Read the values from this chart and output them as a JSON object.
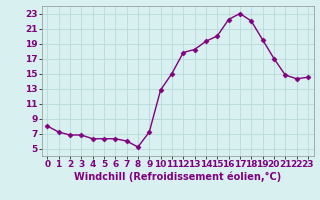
{
  "x": [
    0,
    1,
    2,
    3,
    4,
    5,
    6,
    7,
    8,
    9,
    10,
    11,
    12,
    13,
    14,
    15,
    16,
    17,
    18,
    19,
    20,
    21,
    22,
    23
  ],
  "y": [
    8.0,
    7.2,
    6.8,
    6.8,
    6.3,
    6.3,
    6.3,
    6.0,
    5.2,
    7.2,
    12.8,
    15.0,
    17.8,
    18.2,
    19.3,
    20.0,
    22.2,
    23.0,
    22.0,
    19.5,
    17.0,
    14.8,
    14.3,
    14.5
  ],
  "line_color": "#800080",
  "marker": "D",
  "marker_size": 2.5,
  "xlabel": "Windchill (Refroidissement éolien,°C)",
  "xlabel_fontsize": 7,
  "xlim": [
    -0.5,
    23.5
  ],
  "ylim": [
    4,
    24
  ],
  "yticks": [
    5,
    7,
    9,
    11,
    13,
    15,
    17,
    19,
    21,
    23
  ],
  "xticks": [
    0,
    1,
    2,
    3,
    4,
    5,
    6,
    7,
    8,
    9,
    10,
    11,
    12,
    13,
    14,
    15,
    16,
    17,
    18,
    19,
    20,
    21,
    22,
    23
  ],
  "background_color": "#d8f0f0",
  "grid_color": "#b8dada",
  "tick_fontsize": 6.5,
  "line_width": 1.0
}
